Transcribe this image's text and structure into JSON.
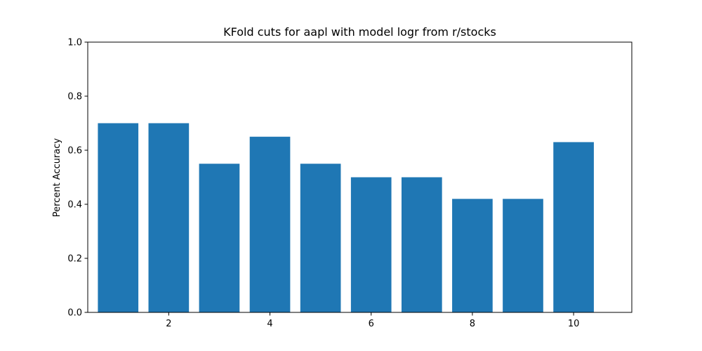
{
  "chart_data": {
    "type": "bar",
    "title": "KFold cuts for aapl with model logr from r/stocks",
    "xlabel": "",
    "ylabel": "Percent Accuracy",
    "x": [
      1,
      2,
      3,
      4,
      5,
      6,
      7,
      8,
      9,
      10
    ],
    "values": [
      0.7,
      0.7,
      0.55,
      0.65,
      0.55,
      0.5,
      0.5,
      0.42,
      0.42,
      0.63
    ],
    "bar_width": 0.8,
    "xlim": [
      0.4,
      11.15
    ],
    "ylim": [
      0.0,
      1.0
    ],
    "xticks": [
      2,
      4,
      6,
      8,
      10
    ],
    "yticks": [
      0.0,
      0.2,
      0.4,
      0.6,
      0.8,
      1.0
    ],
    "xtick_labels": [
      "2",
      "4",
      "6",
      "8",
      "10"
    ],
    "ytick_labels": [
      "0.0",
      "0.2",
      "0.4",
      "0.6",
      "0.8",
      "1.0"
    ],
    "bar_color": "#1f77b4",
    "grid": false,
    "legend": false
  }
}
